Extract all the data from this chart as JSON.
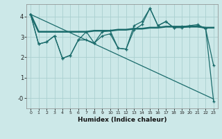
{
  "title": "",
  "xlabel": "Humidex (Indice chaleur)",
  "bg_color": "#cce8e8",
  "line_color": "#1a6b6b",
  "grid_color": "#aad0d0",
  "x_values": [
    0,
    1,
    2,
    3,
    4,
    5,
    6,
    7,
    8,
    9,
    10,
    11,
    12,
    13,
    14,
    15,
    16,
    17,
    18,
    19,
    20,
    21,
    22,
    23
  ],
  "series1": [
    4.1,
    2.65,
    2.75,
    3.05,
    1.95,
    2.1,
    2.85,
    3.25,
    2.7,
    3.25,
    3.3,
    2.45,
    2.4,
    3.55,
    3.75,
    4.4,
    3.55,
    3.75,
    3.45,
    3.5,
    3.55,
    3.6,
    3.4,
    -0.15
  ],
  "series2": [
    4.1,
    3.25,
    3.25,
    3.25,
    3.25,
    3.25,
    3.25,
    3.25,
    3.3,
    3.3,
    3.3,
    3.35,
    3.35,
    3.4,
    3.4,
    3.45,
    3.45,
    3.5,
    3.5,
    3.5,
    3.5,
    3.5,
    3.45,
    3.45
  ],
  "series3": [
    4.1,
    2.65,
    2.75,
    3.05,
    1.95,
    2.1,
    2.85,
    2.85,
    2.7,
    3.05,
    3.15,
    2.45,
    2.4,
    3.35,
    3.6,
    4.4,
    3.55,
    3.75,
    3.45,
    3.45,
    3.5,
    3.55,
    3.4,
    1.6
  ],
  "series4": [
    4.1,
    3.92,
    3.74,
    3.56,
    3.38,
    3.2,
    3.02,
    2.84,
    2.66,
    2.48,
    2.3,
    2.12,
    1.94,
    1.76,
    1.58,
    1.4,
    1.22,
    1.04,
    0.86,
    0.68,
    0.5,
    0.32,
    0.14,
    -0.04
  ],
  "ylim": [
    -0.5,
    4.6
  ],
  "xlim": [
    -0.5,
    23.5
  ],
  "yticks": [
    0,
    1,
    2,
    3,
    4
  ],
  "ytick_labels": [
    "-0",
    "1",
    "2",
    "3",
    "4"
  ],
  "xticks": [
    0,
    1,
    2,
    3,
    4,
    5,
    6,
    7,
    8,
    9,
    10,
    11,
    12,
    13,
    14,
    15,
    16,
    17,
    18,
    19,
    20,
    21,
    22,
    23
  ]
}
